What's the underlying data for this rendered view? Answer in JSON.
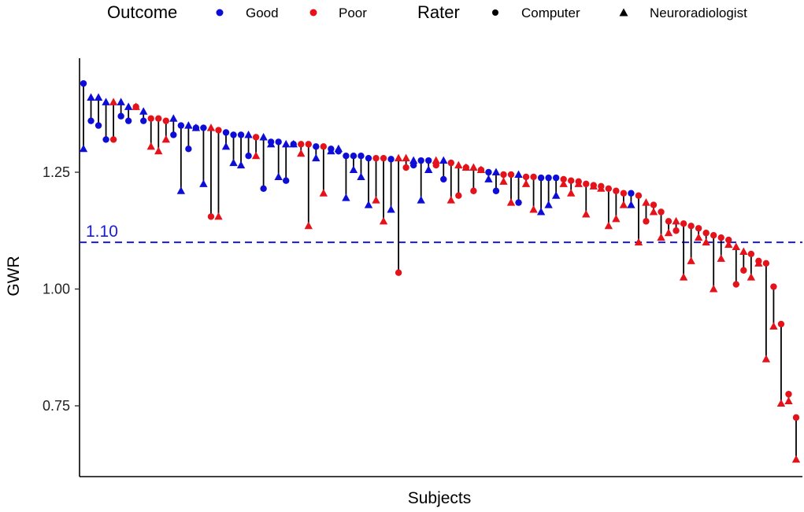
{
  "chart_data": {
    "type": "scatter",
    "xlabel": "Subjects",
    "ylabel": "GWR",
    "ylim": [
      0.6,
      1.49
    ],
    "y_ticks": [
      0.75,
      1.0,
      1.25
    ],
    "y_tick_labels": [
      "0.75",
      "1.00",
      "1.25"
    ],
    "grid": false,
    "legend_position": "top",
    "legends": [
      {
        "title": "Outcome",
        "items": [
          {
            "label": "Good",
            "key": "Good",
            "color": "#0d0dd6",
            "shape": "circle"
          },
          {
            "label": "Poor",
            "key": "Poor",
            "color": "#e3121b",
            "shape": "circle"
          }
        ]
      },
      {
        "title": "Rater",
        "items": [
          {
            "label": "Computer",
            "shape": "circle",
            "color": "#000000"
          },
          {
            "label": "Neuroradiologist",
            "shape": "triangle",
            "color": "#000000"
          }
        ]
      }
    ],
    "reference_line": {
      "y": 1.1,
      "label": "1.10",
      "color": "#1a1adb",
      "style": "dashed"
    },
    "colors": {
      "Good": "#0d0dd6",
      "Poor": "#e3121b"
    },
    "subjects": [
      {
        "outcome": "Good",
        "computer": 1.44,
        "neuroradiologist": 1.3
      },
      {
        "outcome": "Good",
        "computer": 1.36,
        "neuroradiologist": 1.41
      },
      {
        "outcome": "Good",
        "computer": 1.35,
        "neuroradiologist": 1.41
      },
      {
        "outcome": "Good",
        "computer": 1.32,
        "neuroradiologist": 1.4
      },
      {
        "outcome": "Poor",
        "computer": 1.32,
        "neuroradiologist": 1.4
      },
      {
        "outcome": "Good",
        "computer": 1.37,
        "neuroradiologist": 1.4
      },
      {
        "outcome": "Good",
        "computer": 1.36,
        "neuroradiologist": 1.39
      },
      {
        "outcome": "Poor",
        "computer": 1.39,
        "neuroradiologist": 1.39
      },
      {
        "outcome": "Good",
        "computer": 1.36,
        "neuroradiologist": 1.38
      },
      {
        "outcome": "Poor",
        "computer": 1.365,
        "neuroradiologist": 1.305
      },
      {
        "outcome": "Poor",
        "computer": 1.365,
        "neuroradiologist": 1.295
      },
      {
        "outcome": "Poor",
        "computer": 1.36,
        "neuroradiologist": 1.32
      },
      {
        "outcome": "Good",
        "computer": 1.33,
        "neuroradiologist": 1.365
      },
      {
        "outcome": "Good",
        "computer": 1.35,
        "neuroradiologist": 1.21
      },
      {
        "outcome": "Good",
        "computer": 1.3,
        "neuroradiologist": 1.35
      },
      {
        "outcome": "Good",
        "computer": 1.345,
        "neuroradiologist": 1.345
      },
      {
        "outcome": "Good",
        "computer": 1.345,
        "neuroradiologist": 1.225
      },
      {
        "outcome": "Poor",
        "computer": 1.155,
        "neuroradiologist": 1.345
      },
      {
        "outcome": "Poor",
        "computer": 1.34,
        "neuroradiologist": 1.155
      },
      {
        "outcome": "Good",
        "computer": 1.335,
        "neuroradiologist": 1.305
      },
      {
        "outcome": "Good",
        "computer": 1.33,
        "neuroradiologist": 1.27
      },
      {
        "outcome": "Good",
        "computer": 1.33,
        "neuroradiologist": 1.265
      },
      {
        "outcome": "Good",
        "computer": 1.285,
        "neuroradiologist": 1.33
      },
      {
        "outcome": "Poor",
        "computer": 1.325,
        "neuroradiologist": 1.285
      },
      {
        "outcome": "Good",
        "computer": 1.215,
        "neuroradiologist": 1.325
      },
      {
        "outcome": "Good",
        "computer": 1.315,
        "neuroradiologist": 1.31
      },
      {
        "outcome": "Good",
        "computer": 1.315,
        "neuroradiologist": 1.24
      },
      {
        "outcome": "Good",
        "computer": 1.232,
        "neuroradiologist": 1.31
      },
      {
        "outcome": "Good",
        "computer": 1.31,
        "neuroradiologist": 1.31
      },
      {
        "outcome": "Poor",
        "computer": 1.31,
        "neuroradiologist": 1.29
      },
      {
        "outcome": "Poor",
        "computer": 1.31,
        "neuroradiologist": 1.135
      },
      {
        "outcome": "Good",
        "computer": 1.305,
        "neuroradiologist": 1.28
      },
      {
        "outcome": "Poor",
        "computer": 1.305,
        "neuroradiologist": 1.205
      },
      {
        "outcome": "Good",
        "computer": 1.3,
        "neuroradiologist": 1.295
      },
      {
        "outcome": "Good",
        "computer": 1.295,
        "neuroradiologist": 1.3
      },
      {
        "outcome": "Good",
        "computer": 1.285,
        "neuroradiologist": 1.195
      },
      {
        "outcome": "Good",
        "computer": 1.285,
        "neuroradiologist": 1.255
      },
      {
        "outcome": "Good",
        "computer": 1.285,
        "neuroradiologist": 1.24
      },
      {
        "outcome": "Good",
        "computer": 1.28,
        "neuroradiologist": 1.18
      },
      {
        "outcome": "Poor",
        "computer": 1.28,
        "neuroradiologist": 1.19
      },
      {
        "outcome": "Poor",
        "computer": 1.28,
        "neuroradiologist": 1.145
      },
      {
        "outcome": "Good",
        "computer": 1.278,
        "neuroradiologist": 1.17
      },
      {
        "outcome": "Poor",
        "computer": 1.035,
        "neuroradiologist": 1.28
      },
      {
        "outcome": "Poor",
        "computer": 1.26,
        "neuroradiologist": 1.28
      },
      {
        "outcome": "Good",
        "computer": 1.265,
        "neuroradiologist": 1.275
      },
      {
        "outcome": "Good",
        "computer": 1.275,
        "neuroradiologist": 1.19
      },
      {
        "outcome": "Good",
        "computer": 1.275,
        "neuroradiologist": 1.255
      },
      {
        "outcome": "Poor",
        "computer": 1.265,
        "neuroradiologist": 1.275
      },
      {
        "outcome": "Good",
        "computer": 1.235,
        "neuroradiologist": 1.275
      },
      {
        "outcome": "Poor",
        "computer": 1.27,
        "neuroradiologist": 1.19
      },
      {
        "outcome": "Poor",
        "computer": 1.2,
        "neuroradiologist": 1.265
      },
      {
        "outcome": "Poor",
        "computer": 1.26,
        "neuroradiologist": 1.26
      },
      {
        "outcome": "Poor",
        "computer": 1.21,
        "neuroradiologist": 1.26
      },
      {
        "outcome": "Poor",
        "computer": 1.255,
        "neuroradiologist": 1.255
      },
      {
        "outcome": "Good",
        "computer": 1.25,
        "neuroradiologist": 1.235
      },
      {
        "outcome": "Good",
        "computer": 1.21,
        "neuroradiologist": 1.25
      },
      {
        "outcome": "Poor",
        "computer": 1.245,
        "neuroradiologist": 1.23
      },
      {
        "outcome": "Poor",
        "computer": 1.245,
        "neuroradiologist": 1.185
      },
      {
        "outcome": "Good",
        "computer": 1.185,
        "neuroradiologist": 1.245
      },
      {
        "outcome": "Poor",
        "computer": 1.24,
        "neuroradiologist": 1.225
      },
      {
        "outcome": "Poor",
        "computer": 1.24,
        "neuroradiologist": 1.17
      },
      {
        "outcome": "Good",
        "computer": 1.238,
        "neuroradiologist": 1.165
      },
      {
        "outcome": "Good",
        "computer": 1.238,
        "neuroradiologist": 1.18
      },
      {
        "outcome": "Good",
        "computer": 1.238,
        "neuroradiologist": 1.2
      },
      {
        "outcome": "Poor",
        "computer": 1.235,
        "neuroradiologist": 1.225
      },
      {
        "outcome": "Poor",
        "computer": 1.232,
        "neuroradiologist": 1.205
      },
      {
        "outcome": "Poor",
        "computer": 1.23,
        "neuroradiologist": 1.225
      },
      {
        "outcome": "Poor",
        "computer": 1.225,
        "neuroradiologist": 1.16
      },
      {
        "outcome": "Poor",
        "computer": 1.222,
        "neuroradiologist": 1.22
      },
      {
        "outcome": "Poor",
        "computer": 1.22,
        "neuroradiologist": 1.215
      },
      {
        "outcome": "Poor",
        "computer": 1.215,
        "neuroradiologist": 1.135
      },
      {
        "outcome": "Poor",
        "computer": 1.21,
        "neuroradiologist": 1.15
      },
      {
        "outcome": "Poor",
        "computer": 1.205,
        "neuroradiologist": 1.18
      },
      {
        "outcome": "Good",
        "computer": 1.205,
        "neuroradiologist": 1.18
      },
      {
        "outcome": "Poor",
        "computer": 1.2,
        "neuroradiologist": 1.1
      },
      {
        "outcome": "Poor",
        "computer": 1.145,
        "neuroradiologist": 1.185
      },
      {
        "outcome": "Poor",
        "computer": 1.18,
        "neuroradiologist": 1.165
      },
      {
        "outcome": "Poor",
        "computer": 1.165,
        "neuroradiologist": 1.11
      },
      {
        "outcome": "Poor",
        "computer": 1.145,
        "neuroradiologist": 1.12
      },
      {
        "outcome": "Poor",
        "computer": 1.125,
        "neuroradiologist": 1.145
      },
      {
        "outcome": "Poor",
        "computer": 1.14,
        "neuroradiologist": 1.025
      },
      {
        "outcome": "Poor",
        "computer": 1.135,
        "neuroradiologist": 1.06
      },
      {
        "outcome": "Poor",
        "computer": 1.13,
        "neuroradiologist": 1.11
      },
      {
        "outcome": "Poor",
        "computer": 1.12,
        "neuroradiologist": 1.1
      },
      {
        "outcome": "Poor",
        "computer": 1.115,
        "neuroradiologist": 1.0
      },
      {
        "outcome": "Poor",
        "computer": 1.11,
        "neuroradiologist": 1.065
      },
      {
        "outcome": "Poor",
        "computer": 1.105,
        "neuroradiologist": 1.095
      },
      {
        "outcome": "Poor",
        "computer": 1.01,
        "neuroradiologist": 1.09
      },
      {
        "outcome": "Poor",
        "computer": 1.04,
        "neuroradiologist": 1.08
      },
      {
        "outcome": "Poor",
        "computer": 1.075,
        "neuroradiologist": 1.025
      },
      {
        "outcome": "Poor",
        "computer": 1.06,
        "neuroradiologist": 1.055
      },
      {
        "outcome": "Poor",
        "computer": 1.055,
        "neuroradiologist": 0.85
      },
      {
        "outcome": "Poor",
        "computer": 1.005,
        "neuroradiologist": 0.92
      },
      {
        "outcome": "Poor",
        "computer": 0.925,
        "neuroradiologist": 0.755
      },
      {
        "outcome": "Poor",
        "computer": 0.775,
        "neuroradiologist": 0.76
      },
      {
        "outcome": "Poor",
        "computer": 0.725,
        "neuroradiologist": 0.635
      }
    ]
  }
}
